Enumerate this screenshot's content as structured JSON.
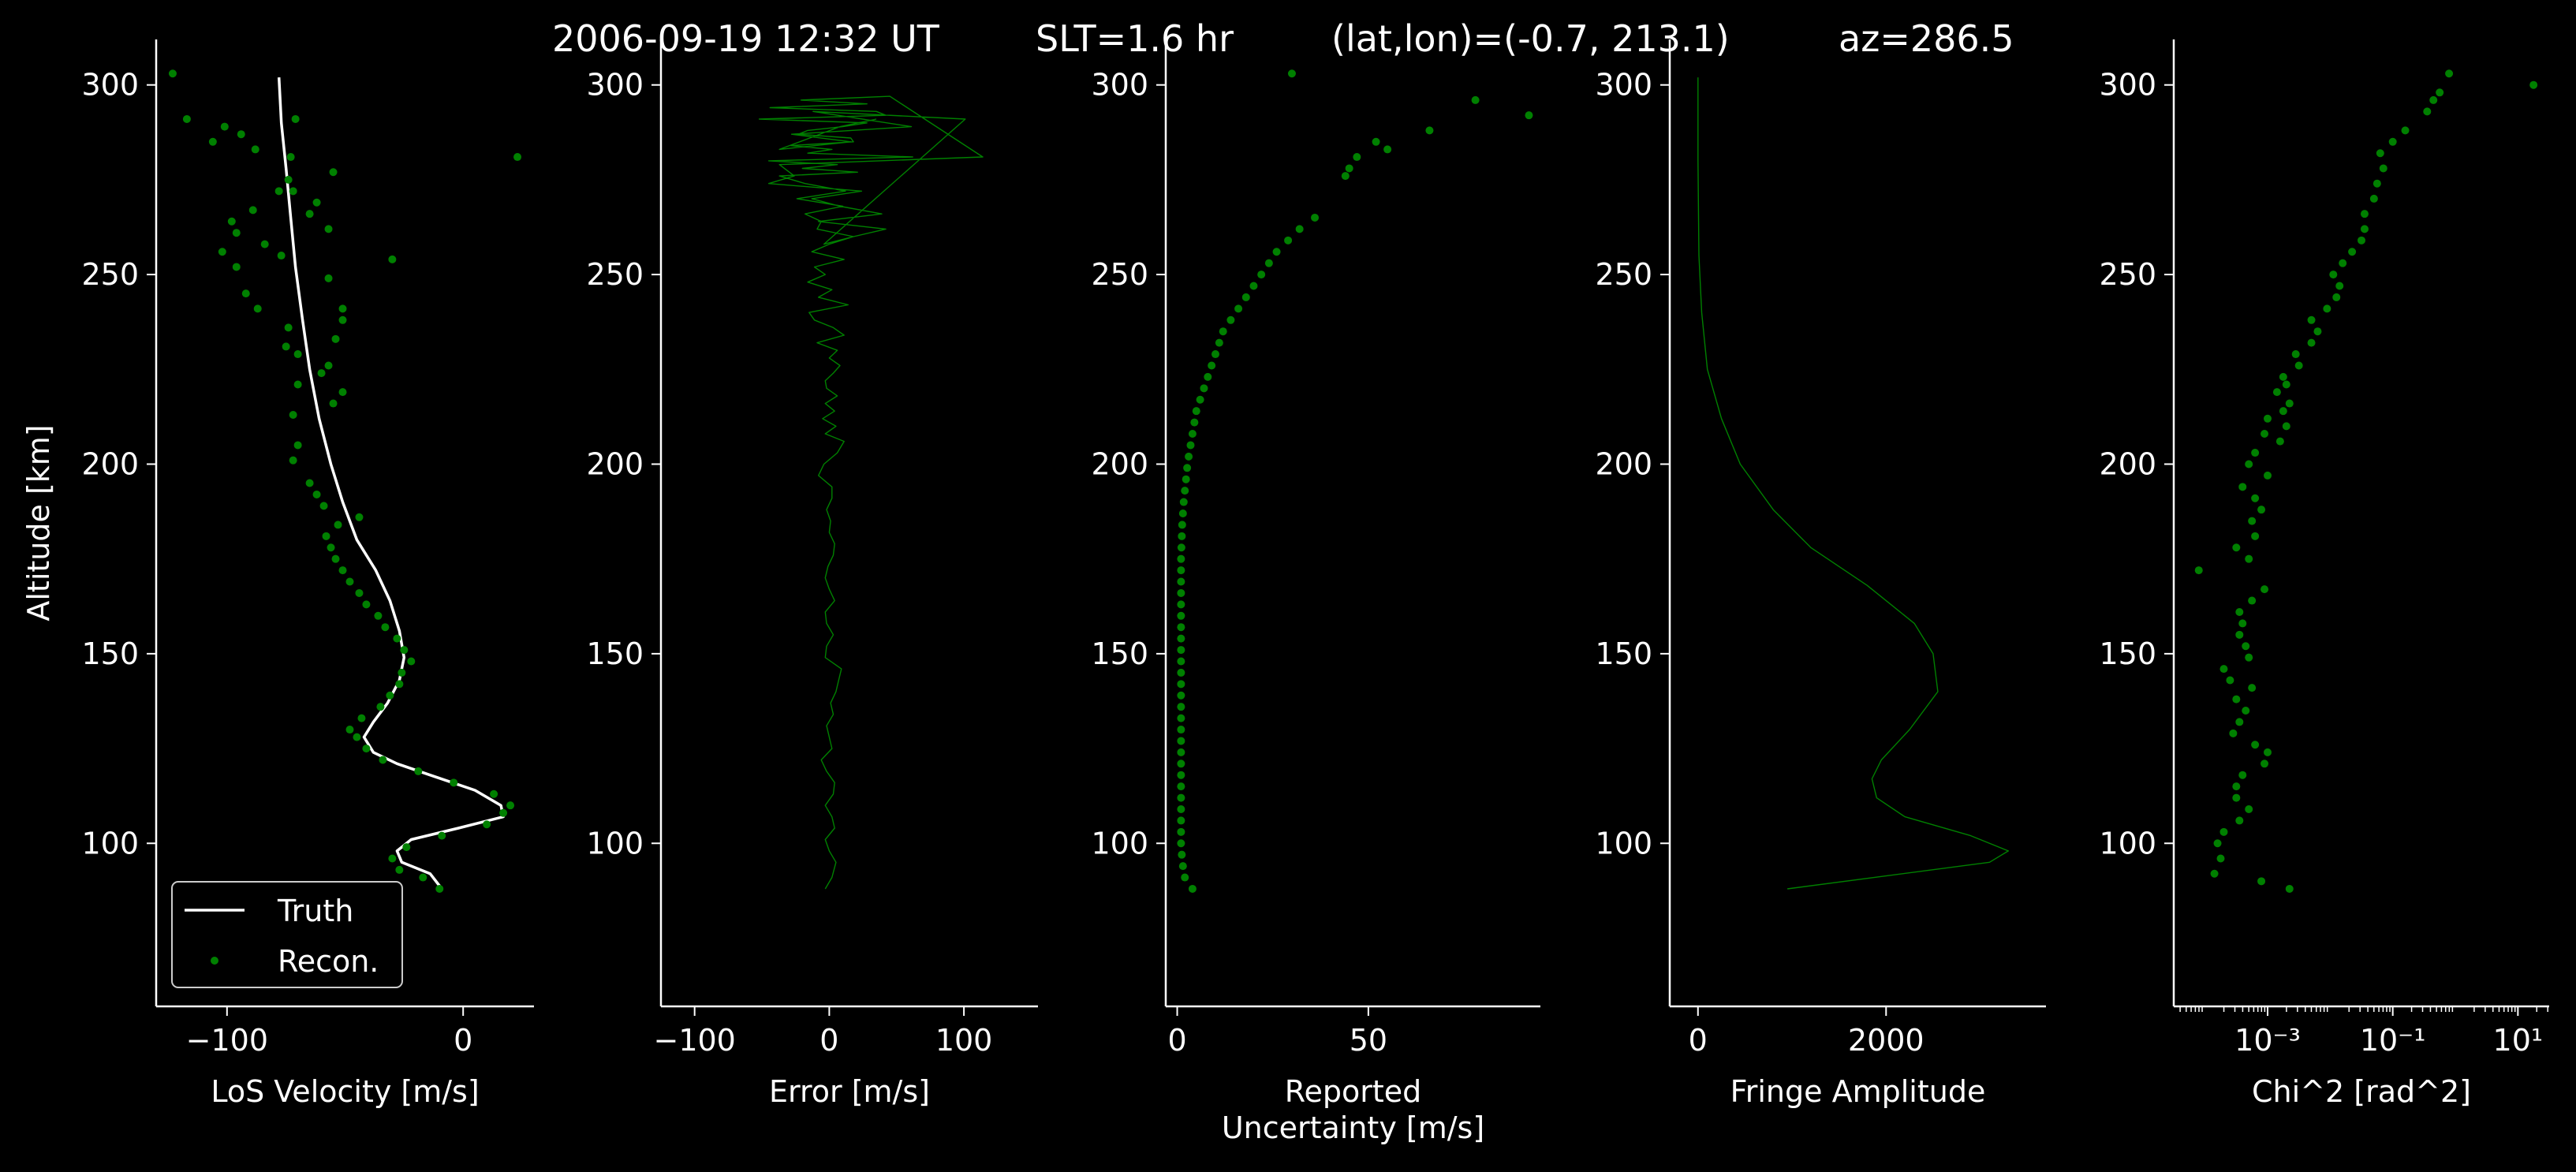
{
  "title": {
    "time": "2006-09-19 12:32 UT",
    "slt": "SLT=1.6 hr",
    "latlon": "(lat,lon)=(-0.7, 213.1)",
    "az": "az=286.5"
  },
  "colors": {
    "background": "#000000",
    "axes": "#ffffff",
    "data": "#008000",
    "truth": "#ffffff"
  },
  "chart_data": [
    {
      "type": "line",
      "xlabel": "LoS Velocity [m/s]",
      "ylabel": "Altitude [km]",
      "xlim": [
        -130,
        30
      ],
      "ylim": [
        57,
        312
      ],
      "xticks": [
        -100,
        0
      ],
      "xticklabels": [
        "−100",
        "0"
      ],
      "yticks": [
        100,
        150,
        200,
        250,
        300
      ],
      "yticklabels": [
        "100",
        "150",
        "200",
        "250",
        "300"
      ],
      "legend": {
        "placement": "lower-left",
        "entries": [
          "Truth",
          "Recon."
        ]
      },
      "series": [
        {
          "name": "Truth",
          "style": "line",
          "x": [
            -9,
            -14,
            -26,
            -28,
            -22,
            -2,
            17,
            16,
            5,
            -14,
            -28,
            -38,
            -42,
            -38,
            -32,
            -27,
            -25,
            -27,
            -31,
            -37,
            -45,
            -51,
            -56,
            -61,
            -65,
            -68,
            -71,
            -73,
            -75,
            -77,
            -78
          ],
          "y": [
            88,
            92,
            95,
            98,
            101,
            104,
            107,
            110,
            114,
            118,
            121,
            124,
            128,
            132,
            137,
            143,
            149,
            156,
            164,
            172,
            180,
            190,
            200,
            212,
            225,
            238,
            252,
            265,
            278,
            290,
            302
          ]
        },
        {
          "name": "Recon.",
          "style": "markers",
          "x": [
            -10,
            -17,
            -27,
            -30,
            -24,
            -9,
            10,
            17,
            20,
            13,
            -4,
            -19,
            -34,
            -41,
            -45,
            -48,
            -43,
            -35,
            -31,
            -27,
            -26,
            -22,
            -25,
            -28,
            -33,
            -36,
            -41,
            -44,
            -48,
            -51,
            -54,
            -56,
            -58,
            -53,
            -44,
            -59,
            -62,
            -65,
            -72,
            -70,
            -72,
            -55,
            -51,
            -70,
            -60,
            -57,
            -70,
            -75,
            -54,
            -74,
            -51,
            -51,
            -87,
            -92,
            -57,
            -30,
            -96,
            -77,
            -84,
            -102,
            -96,
            -98,
            -57,
            -65,
            -62,
            -78,
            -74,
            -72,
            -89,
            -55,
            -73,
            -88,
            -106,
            -94,
            -71,
            -101,
            -117,
            23,
            -123
          ],
          "y": [
            88,
            91,
            93,
            96,
            99,
            102,
            105,
            108,
            110,
            113,
            116,
            119,
            122,
            125,
            128,
            130,
            133,
            136,
            139,
            142,
            145,
            148,
            151,
            154,
            157,
            160,
            163,
            166,
            169,
            172,
            175,
            178,
            181,
            184,
            186,
            189,
            192,
            195,
            201,
            205,
            213,
            216,
            219,
            221,
            224,
            226,
            229,
            231,
            233,
            236,
            238,
            241,
            241,
            245,
            249,
            254,
            252,
            255,
            258,
            256,
            261,
            264,
            262,
            266,
            269,
            272,
            275,
            272,
            267,
            277,
            281,
            283,
            285,
            287,
            291,
            289,
            291,
            281,
            303
          ]
        }
      ]
    },
    {
      "type": "line",
      "xlabel": "Error [m/s]",
      "xlim": [
        -125,
        155
      ],
      "ylim": [
        57,
        312
      ],
      "xticks": [
        -100,
        0,
        100
      ],
      "xticklabels": [
        "−100",
        "0",
        "100"
      ],
      "yticks": [
        100,
        150,
        200,
        250,
        300
      ],
      "yticklabels": [
        "100",
        "150",
        "200",
        "250",
        "300"
      ],
      "series": [
        {
          "style": "line",
          "x": [
            -3,
            2,
            5,
            0,
            -3,
            4,
            2,
            -3,
            3,
            4,
            -2,
            -6,
            2,
            0,
            -2,
            3,
            1,
            5,
            7,
            9,
            -3,
            -2,
            3,
            -2,
            -3,
            4,
            0,
            -3,
            -1,
            3,
            4,
            0,
            1,
            -2,
            2,
            2,
            -8,
            -4,
            6,
            11,
            -3,
            5,
            -5,
            4,
            -3,
            6,
            -2,
            -3,
            3,
            8,
            0,
            6,
            -9,
            11,
            3,
            -11,
            -15,
            14,
            -8,
            2,
            -16,
            -3,
            -11,
            11,
            -13,
            0,
            18,
            -9,
            -6,
            -18,
            10,
            -24,
            12,
            -18,
            -37,
            21,
            -20,
            6,
            -45,
            62,
            -16,
            2,
            -29,
            18,
            16,
            -23,
            -16,
            10,
            28,
            -52,
            42,
            35,
            -44,
            28,
            -21,
            45,
            114,
            -37,
            -26,
            -45,
            24,
            -13,
            8,
            39,
            -8,
            42,
            18,
            -4,
            101,
            -12,
            61,
            -28,
            16,
            -37,
            8,
            35
          ],
          "y": [
            88,
            91,
            95,
            98,
            101,
            104,
            107,
            110,
            113,
            116,
            119,
            122,
            125,
            128,
            131,
            134,
            137,
            140,
            143,
            146,
            149,
            152,
            155,
            158,
            161,
            164,
            167,
            170,
            173,
            176,
            179,
            182,
            185,
            188,
            191,
            194,
            197,
            200,
            203,
            206,
            208,
            210,
            212,
            214,
            216,
            218,
            220,
            222,
            224,
            226,
            228,
            230,
            232,
            234,
            236,
            238,
            240,
            242,
            244,
            246,
            248,
            250,
            252,
            254,
            256,
            258,
            260,
            262,
            264,
            266,
            268,
            270,
            272,
            274,
            276,
            277,
            278,
            279,
            280,
            281,
            282,
            283,
            284,
            285,
            286,
            287,
            288,
            289,
            290,
            291,
            292,
            293,
            294,
            295,
            296,
            297,
            281,
            279,
            276,
            274,
            272,
            270,
            268,
            266,
            264,
            262,
            260,
            258,
            291,
            293,
            289,
            287,
            285,
            283,
            289,
            291
          ]
        }
      ]
    },
    {
      "type": "scatter",
      "xlabel": "Reported\nUncertainty [m/s]",
      "xlim": [
        -3,
        95
      ],
      "ylim": [
        57,
        312
      ],
      "xticks": [
        0,
        50
      ],
      "xticklabels": [
        "0",
        "50"
      ],
      "yticks": [
        100,
        150,
        200,
        250,
        300
      ],
      "yticklabels": [
        "100",
        "150",
        "200",
        "250",
        "300"
      ],
      "series": [
        {
          "style": "markers",
          "x": [
            4,
            2,
            1.5,
            1.2,
            1,
            1,
            1,
            1,
            1,
            1,
            1,
            1,
            1,
            1,
            1,
            1,
            1,
            1,
            1,
            1,
            1,
            1,
            1,
            1,
            1,
            1,
            1,
            1,
            1,
            1,
            1.1,
            1.2,
            1.3,
            1.5,
            1.7,
            2,
            2.3,
            2.6,
            3,
            3.5,
            4,
            4.5,
            5,
            6,
            7,
            8,
            9,
            10,
            11,
            12,
            14,
            16,
            18,
            20,
            22,
            24,
            26,
            29,
            32,
            36,
            44,
            45,
            47,
            52,
            55,
            66,
            78,
            92,
            30
          ],
          "y": [
            88,
            91,
            94,
            97,
            100,
            103,
            106,
            109,
            112,
            115,
            118,
            121,
            124,
            127,
            130,
            133,
            136,
            139,
            142,
            145,
            148,
            151,
            154,
            157,
            160,
            163,
            166,
            169,
            172,
            175,
            178,
            181,
            184,
            187,
            190,
            193,
            196,
            199,
            202,
            205,
            208,
            211,
            214,
            217,
            220,
            223,
            226,
            229,
            232,
            235,
            238,
            241,
            244,
            247,
            250,
            253,
            256,
            259,
            262,
            265,
            276,
            278,
            281,
            285,
            283,
            288,
            296,
            292,
            303
          ]
        }
      ]
    },
    {
      "type": "line",
      "xlabel": "Fringe Amplitude",
      "xlim": [
        -300,
        3700
      ],
      "ylim": [
        57,
        312
      ],
      "xticks": [
        0,
        2000
      ],
      "xticklabels": [
        "0",
        "2000"
      ],
      "yticks": [
        100,
        150,
        200,
        250,
        300
      ],
      "yticklabels": [
        "100",
        "150",
        "200",
        "250",
        "300"
      ],
      "series": [
        {
          "style": "line",
          "x": [
            950,
            3100,
            3300,
            2900,
            2200,
            1900,
            1850,
            1950,
            2250,
            2550,
            2500,
            2300,
            1800,
            1200,
            800,
            450,
            250,
            100,
            40,
            10,
            0,
            0
          ],
          "y": [
            88,
            95,
            98,
            102,
            107,
            112,
            117,
            122,
            130,
            140,
            150,
            158,
            168,
            178,
            188,
            200,
            212,
            225,
            240,
            255,
            280,
            302
          ]
        }
      ]
    },
    {
      "type": "scatter",
      "xlabel": "Chi^2 [rad^2]",
      "xscale": "log",
      "xlim": [
        -4.5,
        1.5
      ],
      "ylim": [
        57,
        312
      ],
      "xticks": [
        -3,
        -1,
        1
      ],
      "xticklabels": [
        "10⁻³",
        "10⁻¹",
        "10¹"
      ],
      "yticks": [
        100,
        150,
        200,
        250,
        300
      ],
      "yticklabels": [
        "100",
        "150",
        "200",
        "250",
        "300"
      ],
      "series": [
        {
          "style": "markers",
          "x_log10": [
            -2.65,
            -3.1,
            -3.85,
            -3.75,
            -3.8,
            -3.7,
            -3.45,
            -3.3,
            -3.5,
            -3.5,
            -3.4,
            -3.05,
            -3.0,
            -3.2,
            -3.55,
            -3.45,
            -3.35,
            -3.5,
            -3.25,
            -3.6,
            -3.7,
            -3.3,
            -3.35,
            -3.45,
            -3.4,
            -3.45,
            -3.25,
            -3.05,
            -4.1,
            -3.3,
            -3.5,
            -3.2,
            -3.25,
            -3.1,
            -3.2,
            -3.4,
            -3.0,
            -3.3,
            -3.2,
            -2.8,
            -3.05,
            -2.7,
            -3.0,
            -2.75,
            -2.65,
            -2.85,
            -2.7,
            -2.75,
            -2.5,
            -2.55,
            -2.3,
            -2.2,
            -2.3,
            -2.05,
            -1.9,
            -1.85,
            -1.95,
            -1.8,
            -1.65,
            -1.5,
            -1.45,
            -1.45,
            -1.3,
            -1.25,
            -1.15,
            -1.2,
            -1.0,
            -0.8,
            -0.45,
            -0.35,
            -0.25,
            1.25,
            -0.1
          ],
          "y": [
            88,
            90,
            92,
            96,
            100,
            103,
            106,
            109,
            112,
            115,
            118,
            121,
            124,
            126,
            129,
            132,
            135,
            138,
            141,
            143,
            146,
            149,
            152,
            155,
            158,
            161,
            164,
            167,
            172,
            175,
            178,
            181,
            185,
            188,
            191,
            194,
            197,
            200,
            203,
            206,
            208,
            210,
            212,
            214,
            216,
            219,
            221,
            223,
            226,
            229,
            232,
            235,
            238,
            241,
            244,
            247,
            250,
            253,
            256,
            259,
            262,
            266,
            270,
            274,
            278,
            282,
            285,
            288,
            293,
            296,
            298,
            300,
            303
          ]
        }
      ]
    }
  ]
}
